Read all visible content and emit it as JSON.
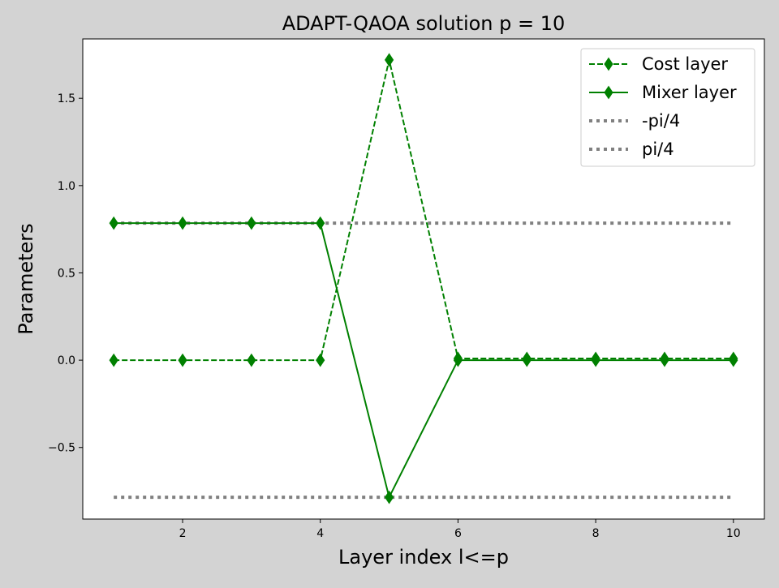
{
  "chart_data": {
    "type": "line",
    "title": "ADAPT-QAOA solution p = 10",
    "xlabel": "Layer index l<=p",
    "ylabel": "Parameters",
    "xlim": [
      0.55,
      10.45
    ],
    "ylim": [
      -0.91,
      1.84
    ],
    "x": [
      1,
      2,
      3,
      4,
      5,
      6,
      7,
      8,
      9,
      10
    ],
    "xticks": [
      2,
      4,
      6,
      8,
      10
    ],
    "yticks": [
      -0.5,
      0.0,
      0.5,
      1.0,
      1.5
    ],
    "xtick_labels": [
      "2",
      "4",
      "6",
      "8",
      "10"
    ],
    "ytick_labels": [
      "−0.5",
      "0.0",
      "0.5",
      "1.0",
      "1.5"
    ],
    "grid": false,
    "legend_position": "top-right",
    "series": [
      {
        "name": "Cost layer",
        "color": "#008000",
        "linestyle": "dashed",
        "marker": "thin-diamond",
        "values": [
          0.0,
          0.0,
          0.0,
          0.0,
          1.72,
          0.01,
          0.01,
          0.01,
          0.01,
          0.01
        ]
      },
      {
        "name": "Mixer layer",
        "color": "#008000",
        "linestyle": "solid",
        "marker": "thin-diamond",
        "values": [
          0.785,
          0.785,
          0.785,
          0.785,
          -0.785,
          0.0,
          0.0,
          0.0,
          0.0,
          0.0
        ]
      },
      {
        "name": "-pi/4",
        "color": "#808080",
        "linestyle": "dotted",
        "marker": "none",
        "values": [
          -0.785,
          -0.785,
          -0.785,
          -0.785,
          -0.785,
          -0.785,
          -0.785,
          -0.785,
          -0.785,
          -0.785
        ]
      },
      {
        "name": "pi/4",
        "color": "#808080",
        "linestyle": "dotted",
        "marker": "none",
        "values": [
          0.785,
          0.785,
          0.785,
          0.785,
          0.785,
          0.785,
          0.785,
          0.785,
          0.785,
          0.785
        ]
      }
    ]
  }
}
